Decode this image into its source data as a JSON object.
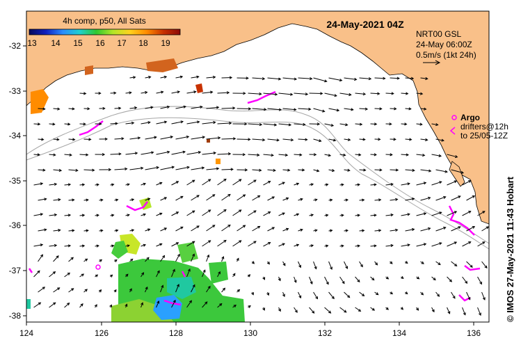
{
  "title": "24-May-2021 04Z",
  "sst_legend": {
    "title": "4h comp, p50, All Sats",
    "ticks": [
      "13",
      "14",
      "15",
      "16",
      "17",
      "18",
      "19"
    ],
    "colors": [
      "#08085a",
      "#1020c0",
      "#2a8cff",
      "#20d0d0",
      "#30c830",
      "#b4e628",
      "#ffd21e",
      "#ff8c00",
      "#c83200",
      "#8c0a0a"
    ]
  },
  "current_info": {
    "line1": "NRT00 GSL",
    "line2": "24-May 06:00Z",
    "line3": "0.5m/s (1kt 24h)"
  },
  "argo_legend": {
    "title": "Argo",
    "line1": "drifters@12h",
    "line2": "to 25/05-12Z"
  },
  "axes": {
    "lat_labels": [
      "-32",
      "-33",
      "-34",
      "-35",
      "-36",
      "-37",
      "-38"
    ],
    "lon_labels": [
      "124",
      "126",
      "128",
      "130",
      "132",
      "134",
      "136"
    ]
  },
  "credit": "© IMOS 27-May-2021 11:43 Hobart",
  "colors": {
    "land": "#f9c089",
    "ocean": "#ffffff",
    "argo": "#ff00ff",
    "bathymetry": "#a6a6a6"
  }
}
